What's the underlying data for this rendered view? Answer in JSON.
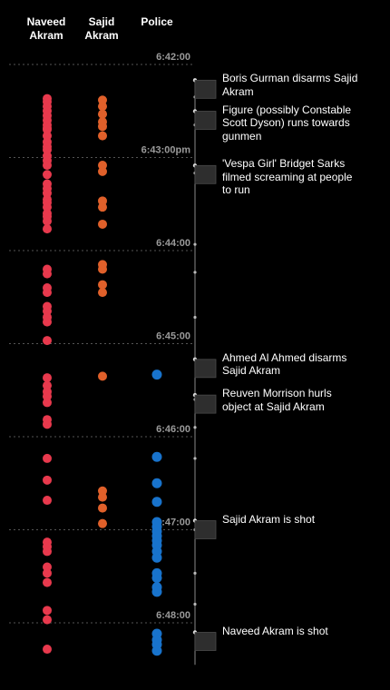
{
  "columns": {
    "naveed": "Naveed\nAkram",
    "sajid": "Sajid\nAkram",
    "police": "Police"
  },
  "colors": {
    "naveed": "#e8394d",
    "sajid": "#e0602a",
    "police": "#1873cc",
    "background": "#000000",
    "axis": "#8a8a8a",
    "time_text": "#9a9a9a",
    "marker_fill": "#2e2e2e"
  },
  "time_axis": {
    "start_seconds": 0,
    "end_seconds": 390,
    "note_unit": "seconds after 6:42:00pm"
  },
  "ticks": [
    {
      "label": "6:42:00",
      "t": 0
    },
    {
      "label": "6:43:00pm",
      "t": 60
    },
    {
      "label": "6:44:00",
      "t": 120
    },
    {
      "label": "6:45:00",
      "t": 180
    },
    {
      "label": "6:46:00",
      "t": 240
    },
    {
      "label": "6:47:00",
      "t": 300
    },
    {
      "label": "6:48:00",
      "t": 360
    }
  ],
  "events": [
    {
      "label": "Boris Gurman disarms Sajid Akram",
      "t": 16
    },
    {
      "label": "Figure (possibly Constable Scott Dyson) runs towards gunmen",
      "t": 36
    },
    {
      "label": "'Vespa Girl' Bridget Sarks filmed screaming at people to run",
      "t": 71
    },
    {
      "label": "Ahmed Al Ahmed disarms Sajid Akram",
      "t": 196
    },
    {
      "label": "Reuven Morrison hurls object at Sajid Akram",
      "t": 219
    },
    {
      "label": "Sajid Akram is shot",
      "t": 300
    },
    {
      "label": "Naveed Akram is shot",
      "t": 372
    }
  ],
  "shots": {
    "naveed": [
      22,
      24,
      27,
      30,
      33,
      36,
      39,
      41,
      42,
      46,
      50,
      53,
      55,
      59,
      62,
      65,
      71,
      77,
      80,
      83,
      87,
      89,
      92,
      96,
      98,
      101,
      106,
      132,
      135,
      144,
      147,
      156,
      159,
      163,
      166,
      178,
      202,
      207,
      211,
      214,
      218,
      229,
      232,
      254,
      268,
      281,
      308,
      311,
      314,
      324,
      328,
      334,
      352,
      358,
      377
    ],
    "sajid": [
      23,
      27,
      32,
      37,
      40,
      46,
      65,
      69,
      88,
      92,
      103,
      129,
      132,
      142,
      147,
      201,
      275,
      279,
      286,
      296
    ],
    "police": [
      200,
      253,
      270,
      282,
      295,
      298,
      301,
      304,
      307,
      310,
      314,
      318,
      328,
      331,
      337,
      340,
      367,
      371,
      374,
      378
    ]
  }
}
